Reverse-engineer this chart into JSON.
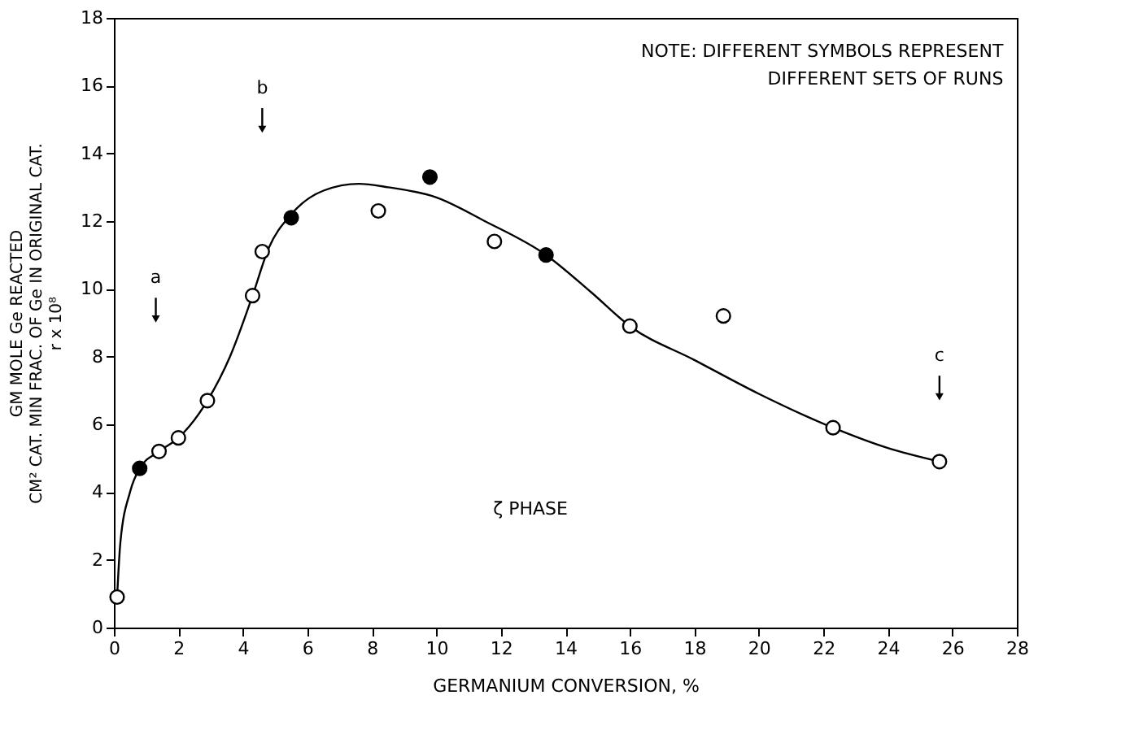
{
  "chart_data": {
    "type": "scatter",
    "xlabel": "GERMANIUM CONVERSION, %",
    "ylabel": "GM  MOLE  Ge  REACTED\nCM² CAT. MIN FRAC. OF Ge IN ORIGINAL CAT.\nr x 10⁸",
    "xlim": [
      0,
      28
    ],
    "xticks": [
      0,
      2,
      4,
      6,
      8,
      10,
      12,
      14,
      16,
      18,
      20,
      22,
      24,
      26,
      28
    ],
    "ylim": [
      0,
      18
    ],
    "yticks": [
      0,
      2,
      4,
      6,
      8,
      10,
      12,
      14,
      16,
      18
    ],
    "grid": false,
    "marker": "circle",
    "series": [
      {
        "type": "line",
        "color": "#000000",
        "marker": "none",
        "x": [
          0.1,
          0.2,
          0.5,
          0.8,
          1.4,
          2.0,
          2.9,
          3.6,
          4.3,
          4.8,
          5.5,
          6.5,
          7.6,
          8.5,
          10,
          11.5,
          13.4,
          14.8,
          16,
          18,
          20,
          22.3,
          24,
          25.6
        ],
        "values": [
          0.9,
          2.5,
          4.0,
          4.7,
          5.2,
          5.6,
          6.7,
          8.0,
          9.8,
          11.2,
          12.2,
          12.9,
          13.1,
          13.0,
          12.7,
          12.0,
          11.0,
          9.9,
          8.9,
          7.9,
          6.9,
          5.9,
          5.3,
          4.9
        ]
      },
      {
        "color": "#ffffff",
        "x": [
          0.1,
          1.4,
          2.0,
          2.9,
          4.3,
          4.6,
          8.2,
          11.8,
          16.0,
          18.9,
          22.3,
          25.6
        ],
        "values": [
          0.9,
          5.2,
          5.6,
          6.7,
          9.8,
          11.1,
          12.3,
          11.4,
          8.9,
          9.2,
          5.9,
          4.9
        ]
      },
      {
        "color": "#000000",
        "x": [
          0.8,
          5.5,
          9.8,
          13.4
        ],
        "values": [
          4.7,
          12.1,
          13.3,
          11.0
        ]
      }
    ],
    "annotations": [
      "a",
      "b",
      "c",
      "ζ PHASE",
      "NOTE: DIFFERENT SYMBOLS REPRESENT\nDIFFERENT SETS OF RUNS"
    ]
  }
}
